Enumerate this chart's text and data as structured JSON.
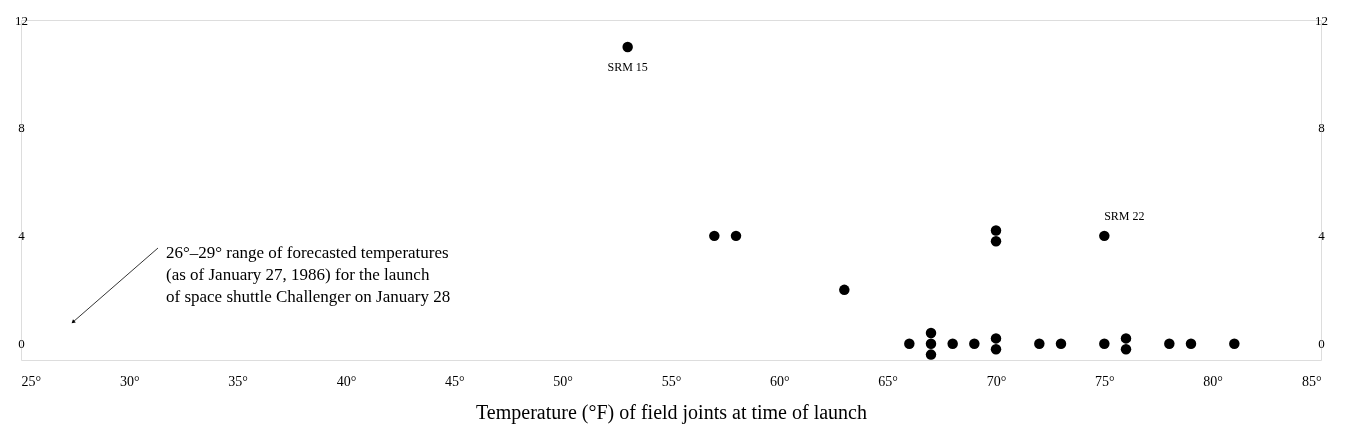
{
  "chart_data": {
    "type": "scatter",
    "xlabel": "Temperature (°F) of field joints at time of launch",
    "x": [
      53,
      57,
      58,
      63,
      70,
      70,
      75,
      66,
      67,
      67,
      67,
      68,
      69,
      70,
      70,
      72,
      73,
      75,
      76,
      76,
      78,
      79,
      81
    ],
    "series": [
      {
        "color": "#000000",
        "values": [
          11,
          4,
          4,
          2,
          4.2,
          3.8,
          4,
          0,
          0.4,
          0,
          -0.4,
          0,
          0,
          0.2,
          -0.2,
          0,
          0,
          0,
          0.2,
          -0.2,
          0,
          0,
          0
        ]
      }
    ],
    "xlim": [
      25,
      85
    ],
    "xticks": [
      {
        "value": 25,
        "label": "25°"
      },
      {
        "value": 30,
        "label": "30°"
      },
      {
        "value": 35,
        "label": "35°"
      },
      {
        "value": 40,
        "label": "40°"
      },
      {
        "value": 45,
        "label": "45°"
      },
      {
        "value": 50,
        "label": "50°"
      },
      {
        "value": 55,
        "label": "55°"
      },
      {
        "value": 60,
        "label": "60°"
      },
      {
        "value": 65,
        "label": "65°"
      },
      {
        "value": 70,
        "label": "70°"
      },
      {
        "value": 75,
        "label": "75°"
      },
      {
        "value": 80,
        "label": "80°"
      },
      {
        "value": 85,
        "label": "85°"
      }
    ],
    "ylim": [
      -0.6,
      12
    ],
    "yticks": [
      0,
      4,
      8,
      12
    ],
    "y2lim": [
      -0.6,
      12
    ],
    "y2ticks": [
      0,
      4,
      8,
      12
    ],
    "marker": "circle",
    "grid": false,
    "legend": false,
    "annotations": [
      {
        "text": "SRM 15",
        "x": 53,
        "y": 11
      },
      {
        "text": "SRM 22",
        "x": 75,
        "y": 4
      },
      "26°–29° range of forecasted temperatures\n(as of January 27, 1986) for the launch\nof space shuttle Challenger on January 28"
    ]
  }
}
